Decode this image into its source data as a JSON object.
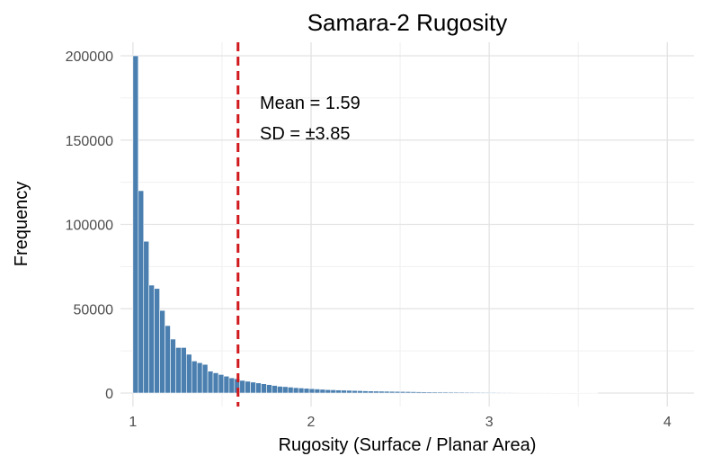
{
  "chart_data": {
    "type": "bar",
    "title": "Samara-2 Rugosity",
    "xlabel": "Rugosity (Surface / Planar Area)",
    "ylabel": "Frequency",
    "xlim": [
      0.93,
      4.15
    ],
    "ylim": [
      -8000,
      208000
    ],
    "x_ticks": [
      "1",
      "2",
      "3",
      "4"
    ],
    "y_ticks": [
      "0",
      "50000",
      "100000",
      "150000",
      "200000"
    ],
    "grid": true,
    "bin_start": 1.0,
    "bin_width": 0.03,
    "values": [
      200000,
      120000,
      90000,
      64000,
      62000,
      49000,
      40000,
      32000,
      27000,
      27000,
      23000,
      19000,
      18000,
      17000,
      13000,
      12000,
      11000,
      10000,
      9000,
      8500,
      7500,
      7000,
      6500,
      6000,
      5500,
      5000,
      4500,
      4000,
      3800,
      3500,
      3200,
      3000,
      2800,
      2600,
      2400,
      2200,
      2000,
      1900,
      1800,
      1700,
      1600,
      1500,
      1400,
      1300,
      1200,
      1150,
      1100,
      1050,
      1000,
      950,
      900,
      850,
      800,
      750,
      700,
      650,
      620,
      600,
      580,
      560,
      540,
      520,
      500,
      480,
      460,
      440,
      420,
      400,
      380,
      360,
      350,
      340,
      330,
      320,
      310,
      300,
      290,
      280,
      270,
      260,
      250,
      240,
      230,
      220,
      210,
      200,
      190
    ],
    "bar_color": "#4a7fb0",
    "mean_line": {
      "value": 1.59,
      "color": "#d0191c"
    },
    "annotations": [
      "Mean = 1.59",
      "SD = ±3.85"
    ]
  }
}
